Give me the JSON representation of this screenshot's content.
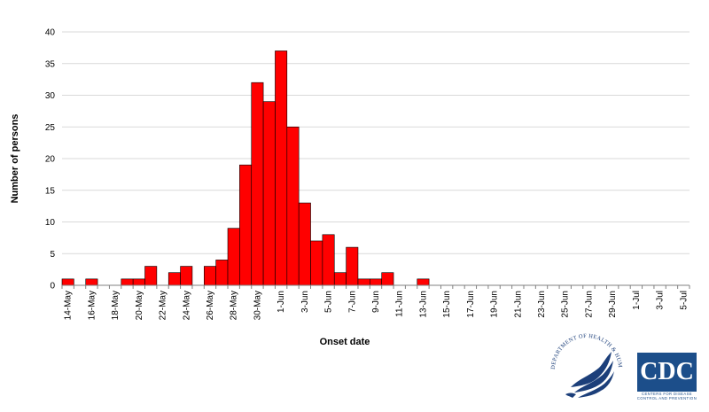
{
  "chart_data": {
    "type": "bar",
    "xlabel": "Onset date",
    "ylabel": "Number of persons",
    "ylim": [
      0,
      40
    ],
    "yticks": [
      0,
      5,
      10,
      15,
      20,
      25,
      30,
      35,
      40
    ],
    "grid": "horizontal",
    "bar_color": "#ff0000",
    "bar_edge_color": "#000000",
    "categories": [
      "14-May",
      "15-May",
      "16-May",
      "17-May",
      "18-May",
      "19-May",
      "20-May",
      "21-May",
      "22-May",
      "23-May",
      "24-May",
      "25-May",
      "26-May",
      "27-May",
      "28-May",
      "29-May",
      "30-May",
      "31-May",
      "1-Jun",
      "2-Jun",
      "3-Jun",
      "4-Jun",
      "5-Jun",
      "6-Jun",
      "7-Jun",
      "8-Jun",
      "9-Jun",
      "10-Jun",
      "11-Jun",
      "12-Jun",
      "13-Jun",
      "14-Jun",
      "15-Jun",
      "16-Jun",
      "17-Jun",
      "18-Jun",
      "19-Jun",
      "20-Jun",
      "21-Jun",
      "22-Jun",
      "23-Jun",
      "24-Jun",
      "25-Jun",
      "26-Jun",
      "27-Jun",
      "28-Jun",
      "29-Jun",
      "30-Jun",
      "1-Jul",
      "2-Jul",
      "3-Jul",
      "4-Jul",
      "5-Jul"
    ],
    "x_tick_labels": [
      "14-May",
      "16-May",
      "18-May",
      "20-May",
      "22-May",
      "24-May",
      "26-May",
      "28-May",
      "30-May",
      "1-Jun",
      "3-Jun",
      "5-Jun",
      "7-Jun",
      "9-Jun",
      "11-Jun",
      "13-Jun",
      "15-Jun",
      "17-Jun",
      "19-Jun",
      "21-Jun",
      "23-Jun",
      "25-Jun",
      "27-Jun",
      "29-Jun",
      "1-Jul",
      "3-Jul",
      "5-Jul"
    ],
    "values": [
      1,
      0,
      1,
      0,
      0,
      1,
      1,
      3,
      0,
      2,
      3,
      0,
      3,
      4,
      9,
      19,
      32,
      29,
      37,
      25,
      13,
      7,
      8,
      2,
      6,
      1,
      1,
      2,
      0,
      0,
      1,
      0,
      0,
      0,
      0,
      0,
      0,
      0,
      0,
      0,
      0,
      0,
      0,
      0,
      0,
      0,
      0,
      0,
      0,
      0,
      0,
      0,
      0
    ]
  },
  "logos": {
    "hhs": {
      "name": "hhs-seal",
      "text": "DEPARTMENT OF HEALTH & HUMAN SERVICES·USA",
      "color": "#1c3f7a"
    },
    "cdc": {
      "name": "cdc-logo",
      "text": "CDC",
      "subtext_1": "CENTERS FOR DISEASE",
      "subtext_2": "CONTROL AND PREVENTION",
      "color": "#1c4e8a"
    }
  }
}
